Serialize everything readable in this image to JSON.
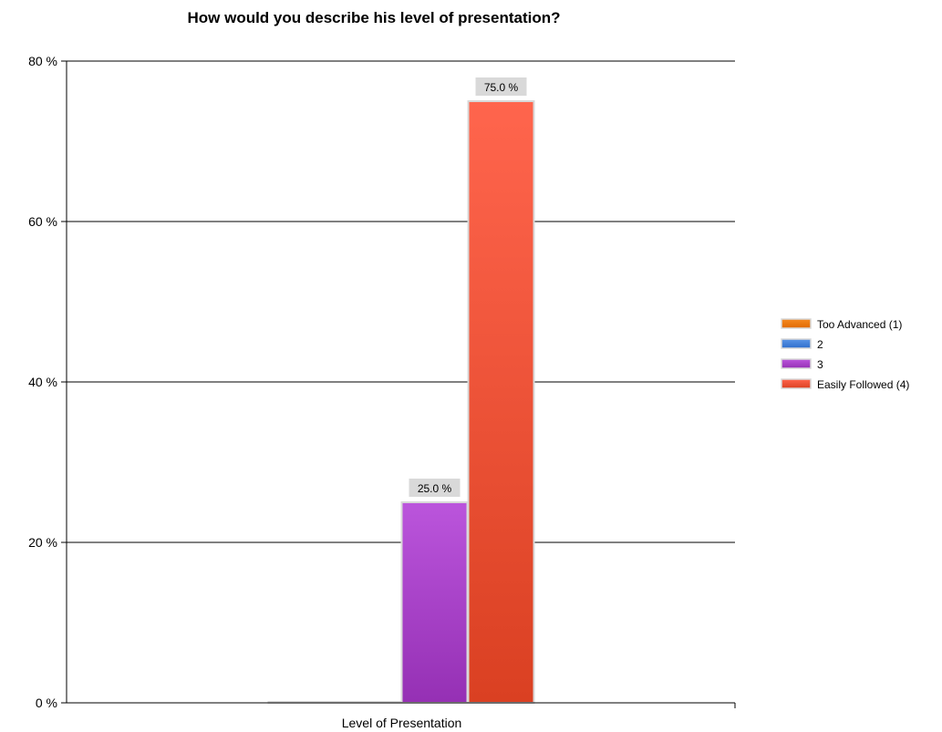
{
  "chart_data": {
    "type": "bar",
    "title": "How would you describe his level of presentation?",
    "categories": [
      "Level of Presentation"
    ],
    "series": [
      {
        "name": "Too Advanced (1)",
        "values": [
          0
        ],
        "color": "#f07a10"
      },
      {
        "name": "2",
        "values": [
          0
        ],
        "color": "#3f7fd8"
      },
      {
        "name": "3",
        "values": [
          25.0
        ],
        "color": "#a63ec7",
        "label": "25.0 %"
      },
      {
        "name": "Easily Followed (4)",
        "values": [
          75.0
        ],
        "color": "#e9513a",
        "label": "75.0 %"
      }
    ],
    "ylim": [
      0,
      80
    ],
    "yticks": [
      "0 %",
      "20 %",
      "40 %",
      "60 %",
      "80 %"
    ],
    "grid": true,
    "legend": "right"
  }
}
